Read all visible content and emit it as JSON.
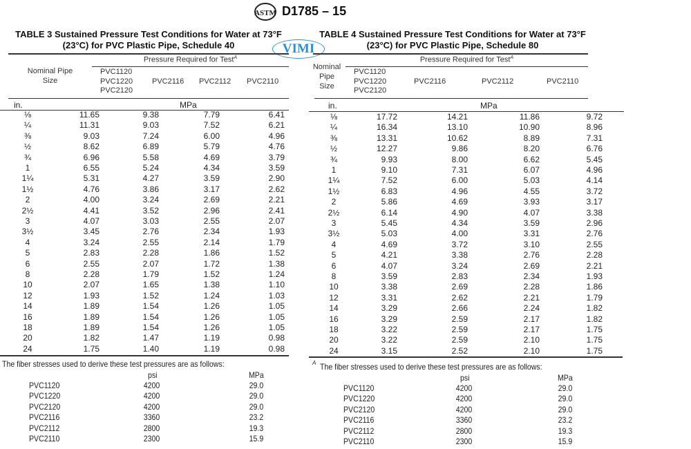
{
  "header": {
    "designation": "D1785 – 15",
    "logo_text": "ASTM"
  },
  "watermark": {
    "text": "VIMI",
    "color": "#2a8fd6"
  },
  "table3": {
    "title_line1": "TABLE 3 Sustained Pressure Test Conditions for Water at 73°F",
    "title_line2": "(23°C) for PVC Plastic Pipe, Schedule 40",
    "group_header": "Pressure Required for Test",
    "footnote_mark": "A",
    "size_header": [
      "Nominal Pipe",
      "Size"
    ],
    "col_headers": [
      [
        "PVC1120",
        "PVC1220",
        "PVC2120"
      ],
      [
        "PVC2116"
      ],
      [
        "PVC2112"
      ],
      [
        "PVC2110"
      ]
    ],
    "unit_left": "in.",
    "unit_right": "MPa",
    "rows": [
      [
        "⅛",
        "11.65",
        "9.38",
        "7.79",
        "6.41"
      ],
      [
        "¼",
        "11.31",
        "9.03",
        "7.52",
        "6.21"
      ],
      [
        "⅜",
        "9.03",
        "7.24",
        "6.00",
        "4.96"
      ],
      [
        "½",
        "8.62",
        "6.89",
        "5.79",
        "4.76"
      ],
      [
        "¾",
        "6.96",
        "5.58",
        "4.69",
        "3.79"
      ],
      [
        "1",
        "6.55",
        "5.24",
        "4.34",
        "3.59"
      ],
      [
        "1¼",
        "5.31",
        "4.27",
        "3.59",
        "2.90"
      ],
      [
        "1½",
        "4.76",
        "3.86",
        "3.17",
        "2.62"
      ],
      [
        "2",
        "4.00",
        "3.24",
        "2.69",
        "2.21"
      ],
      [
        "2½",
        "4.41",
        "3.52",
        "2.96",
        "2.41"
      ],
      [
        "3",
        "4.07",
        "3.03",
        "2.55",
        "2.07"
      ],
      [
        "3½",
        "3.45",
        "2.76",
        "2.34",
        "1.93"
      ],
      [
        "4",
        "3.24",
        "2.55",
        "2.14",
        "1.79"
      ],
      [
        "5",
        "2.83",
        "2.28",
        "1.86",
        "1.52"
      ],
      [
        "6",
        "2.55",
        "2.07",
        "1.72",
        "1.38"
      ],
      [
        "8",
        "2.28",
        "1.79",
        "1.52",
        "1.24"
      ],
      [
        "10",
        "2.07",
        "1.65",
        "1.38",
        "1.10"
      ],
      [
        "12",
        "1.93",
        "1.52",
        "1.24",
        "1.03"
      ],
      [
        "14",
        "1.89",
        "1.54",
        "1.26",
        "1.05"
      ],
      [
        "16",
        "1.89",
        "1.54",
        "1.26",
        "1.05"
      ],
      [
        "18",
        "1.89",
        "1.54",
        "1.26",
        "1.05"
      ],
      [
        "20",
        "1.82",
        "1.47",
        "1.19",
        "0.98"
      ],
      [
        "24",
        "1.75",
        "1.40",
        "1.19",
        "0.98"
      ]
    ],
    "footnote": {
      "mark": "",
      "text": "The fiber stresses used to derive these test pressures are as follows:",
      "headers": [
        "psi",
        "MPa"
      ],
      "rows": [
        [
          "PVC1120",
          "4200",
          "29.0"
        ],
        [
          "PVC1220",
          "4200",
          "29.0"
        ],
        [
          "PVC2120",
          "4200",
          "29.0"
        ],
        [
          "PVC2116",
          "3360",
          "23.2"
        ],
        [
          "PVC2112",
          "2800",
          "19.3"
        ],
        [
          "PVC2110",
          "2300",
          "15.9"
        ]
      ]
    }
  },
  "table4": {
    "title_line1": "TABLE 4 Sustained Pressure Test Conditions for Water at 73°F",
    "title_line2": "(23°C) for PVC Plastic Pipe, Schedule 80",
    "group_header": "Pressure Required for Test",
    "footnote_mark": "A",
    "size_header": [
      "Nominal",
      "Pipe",
      "Size"
    ],
    "col_headers": [
      [
        "PVC1120",
        "PVC1220",
        "PVC2120"
      ],
      [
        "PVC2116"
      ],
      [
        "PVC2112"
      ],
      [
        "PVC2110"
      ]
    ],
    "unit_left": "in.",
    "unit_right": "MPa",
    "rows": [
      [
        "⅛",
        "17.72",
        "14.21",
        "11.86",
        "9.72"
      ],
      [
        "¼",
        "16.34",
        "13.10",
        "10.90",
        "8.96"
      ],
      [
        "⅜",
        "13.31",
        "10.62",
        "8.89",
        "7.31"
      ],
      [
        "½",
        "12.27",
        "9.86",
        "8.20",
        "6.76"
      ],
      [
        "¾",
        "9.93",
        "8.00",
        "6.62",
        "5.45"
      ],
      [
        "1",
        "9.10",
        "7.31",
        "6.07",
        "4.96"
      ],
      [
        "1¼",
        "7.52",
        "6.00",
        "5.03",
        "4.14"
      ],
      [
        "1½",
        "6.83",
        "4.96",
        "4.55",
        "3.72"
      ],
      [
        "2",
        "5.86",
        "4.69",
        "3.93",
        "3.17"
      ],
      [
        "2½",
        "6.14",
        "4.90",
        "4.07",
        "3.38"
      ],
      [
        "3",
        "5.45",
        "4.34",
        "3.59",
        "2.96"
      ],
      [
        "3½",
        "5.03",
        "4.00",
        "3.31",
        "2.76"
      ],
      [
        "4",
        "4.69",
        "3.72",
        "3.10",
        "2.55"
      ],
      [
        "5",
        "4.21",
        "3.38",
        "2.76",
        "2.28"
      ],
      [
        "6",
        "4.07",
        "3.24",
        "2.69",
        "2.21"
      ],
      [
        "8",
        "3.59",
        "2.83",
        "2.34",
        "1.93"
      ],
      [
        "10",
        "3.38",
        "2.69",
        "2.28",
        "1.86"
      ],
      [
        "12",
        "3.31",
        "2.62",
        "2.21",
        "1.79"
      ],
      [
        "14",
        "3.29",
        "2.66",
        "2.24",
        "1.82"
      ],
      [
        "16",
        "3.29",
        "2.59",
        "2.17",
        "1.82"
      ],
      [
        "18",
        "3.22",
        "2.59",
        "2.17",
        "1.75"
      ],
      [
        "20",
        "3.22",
        "2.59",
        "2.10",
        "1.75"
      ],
      [
        "24",
        "3.15",
        "2.52",
        "2.10",
        "1.75"
      ]
    ],
    "footnote": {
      "mark": "A",
      "text": "The fiber stresses used to derive these test pressures are as follows:",
      "headers": [
        "psi",
        "MPa"
      ],
      "rows": [
        [
          "PVC1120",
          "4200",
          "29.0"
        ],
        [
          "PVC1220",
          "4200",
          "29.0"
        ],
        [
          "PVC2120",
          "4200",
          "29.0"
        ],
        [
          "PVC2116",
          "3360",
          "23.2"
        ],
        [
          "PVC2112",
          "2800",
          "19.3"
        ],
        [
          "PVC2110",
          "2300",
          "15.9"
        ]
      ]
    }
  }
}
